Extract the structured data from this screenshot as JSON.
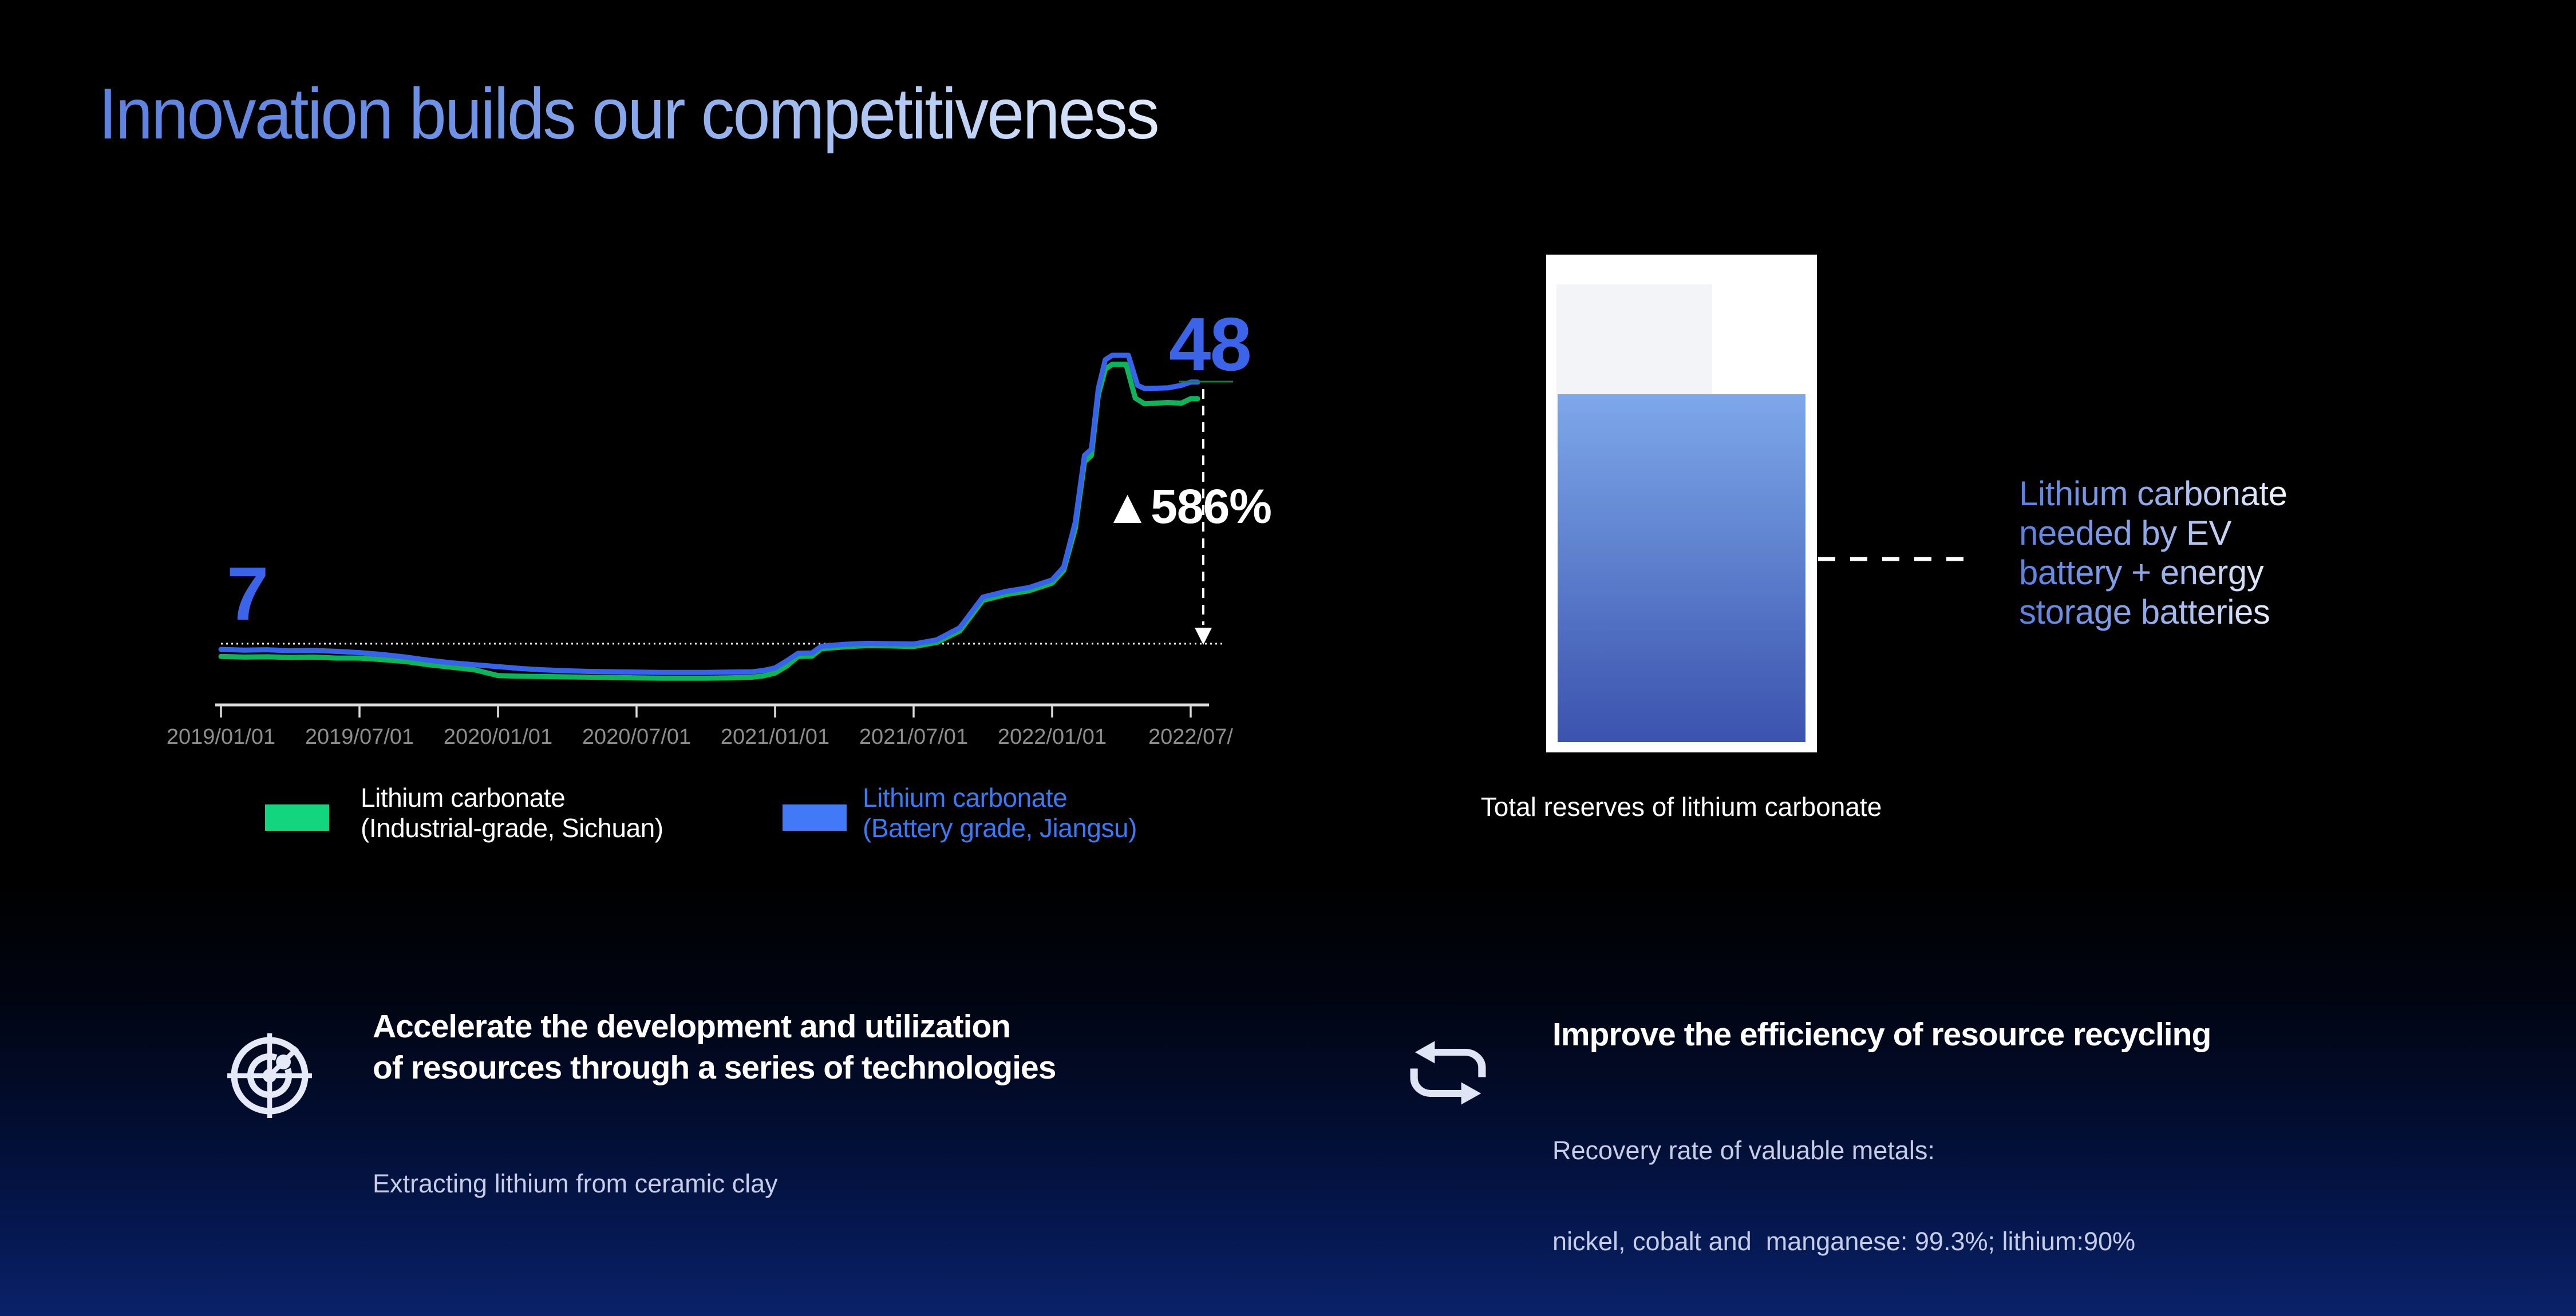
{
  "slide_title": "Innovation builds our competitiveness",
  "chart_data": {
    "type": "line",
    "x_axis": {
      "tick_labels": [
        "2019/01/01",
        "2019/07/01",
        "2020/01/01",
        "2020/07/01",
        "2021/01/01",
        "2021/07/01",
        "2022/01/01",
        "2022/07/"
      ],
      "tick_months": [
        0,
        6,
        12,
        18,
        24,
        30,
        36,
        42
      ]
    },
    "ylim": [
      0,
      55
    ],
    "grid": "off",
    "baseline_value": 7,
    "series": [
      {
        "name": "Lithium carbonate (Industrial-grade, Sichuan)",
        "color": "#11b35a",
        "points": [
          [
            0,
            5.0
          ],
          [
            1,
            4.9
          ],
          [
            2,
            4.95
          ],
          [
            3,
            4.85
          ],
          [
            4,
            4.9
          ],
          [
            5,
            4.75
          ],
          [
            6,
            4.75
          ],
          [
            7,
            4.5
          ],
          [
            8,
            4.2
          ],
          [
            9,
            3.7
          ],
          [
            10,
            3.3
          ],
          [
            11,
            2.9
          ],
          [
            12,
            2.0
          ],
          [
            13,
            1.9
          ],
          [
            14,
            1.85
          ],
          [
            15,
            1.8
          ],
          [
            16,
            1.75
          ],
          [
            17,
            1.7
          ],
          [
            18,
            1.65
          ],
          [
            19,
            1.6
          ],
          [
            20,
            1.6
          ],
          [
            21,
            1.6
          ],
          [
            22,
            1.65
          ],
          [
            23,
            1.75
          ],
          [
            23.5,
            1.95
          ],
          [
            24,
            2.4
          ],
          [
            24.5,
            3.5
          ],
          [
            25,
            5.0
          ],
          [
            25.6,
            5.05
          ],
          [
            26,
            6.2
          ],
          [
            27,
            6.5
          ],
          [
            28,
            6.7
          ],
          [
            29,
            6.65
          ],
          [
            30,
            6.55
          ],
          [
            31,
            7.2
          ],
          [
            32,
            9.0
          ],
          [
            33,
            13.8
          ],
          [
            34,
            14.7
          ],
          [
            35,
            15.3
          ],
          [
            36,
            16.5
          ],
          [
            36.5,
            18.5
          ],
          [
            37,
            25.0
          ],
          [
            37.4,
            35.5
          ],
          [
            37.7,
            36.5
          ],
          [
            38,
            46.0
          ],
          [
            38.3,
            50.0
          ],
          [
            38.6,
            50.8
          ],
          [
            39.2,
            50.8
          ],
          [
            39.6,
            45.5
          ],
          [
            40,
            44.6
          ],
          [
            41,
            44.8
          ],
          [
            41.6,
            44.7
          ],
          [
            42,
            45.4
          ],
          [
            42.3,
            45.4
          ]
        ]
      },
      {
        "name": "Lithium carbonate (Battery grade, Jiangsu)",
        "color": "#3663ea",
        "points": [
          [
            0,
            6.1
          ],
          [
            1,
            6.0
          ],
          [
            2,
            6.05
          ],
          [
            3,
            5.9
          ],
          [
            4,
            5.95
          ],
          [
            5,
            5.8
          ],
          [
            6,
            5.6
          ],
          [
            7,
            5.3
          ],
          [
            8,
            4.9
          ],
          [
            9,
            4.4
          ],
          [
            10,
            4.0
          ],
          [
            11,
            3.7
          ],
          [
            12,
            3.4
          ],
          [
            13,
            3.1
          ],
          [
            14,
            2.9
          ],
          [
            15,
            2.75
          ],
          [
            16,
            2.65
          ],
          [
            17,
            2.6
          ],
          [
            18,
            2.55
          ],
          [
            19,
            2.5
          ],
          [
            20,
            2.5
          ],
          [
            21,
            2.5
          ],
          [
            22,
            2.55
          ],
          [
            23,
            2.6
          ],
          [
            23.5,
            2.8
          ],
          [
            24,
            3.2
          ],
          [
            24.5,
            4.3
          ],
          [
            25,
            5.5
          ],
          [
            25.6,
            5.55
          ],
          [
            26,
            6.6
          ],
          [
            27,
            6.9
          ],
          [
            28,
            7.05
          ],
          [
            29,
            7.0
          ],
          [
            30,
            6.95
          ],
          [
            31,
            7.6
          ],
          [
            32,
            9.5
          ],
          [
            33,
            14.3
          ],
          [
            34,
            15.2
          ],
          [
            35,
            15.8
          ],
          [
            36,
            17.0
          ],
          [
            36.5,
            19.0
          ],
          [
            37,
            26.0
          ],
          [
            37.4,
            36.5
          ],
          [
            37.7,
            37.5
          ],
          [
            38,
            47.0
          ],
          [
            38.3,
            51.5
          ],
          [
            38.6,
            52.2
          ],
          [
            39.3,
            52.2
          ],
          [
            39.7,
            47.5
          ],
          [
            40,
            47.0
          ],
          [
            41,
            47.1
          ],
          [
            41.6,
            47.5
          ],
          [
            42,
            48.0
          ],
          [
            42.3,
            48.0
          ]
        ]
      }
    ],
    "annotations": {
      "start_label": "7",
      "end_label": "48",
      "change_label": "▲586%"
    }
  },
  "legend": {
    "items": [
      {
        "line1": "Lithium carbonate",
        "line2": "(Industrial-grade, Sichuan)",
        "swatch_color": "#12d57d",
        "text_color": "#ffffff"
      },
      {
        "line1": "Lithium carbonate",
        "line2": "(Battery grade, Jiangsu)",
        "swatch_color": "#4179f7",
        "text_color": "#3d78f5"
      }
    ]
  },
  "tank": {
    "caption": "Total reserves of lithium carbonate",
    "note_lines": [
      "Lithium carbonate",
      "needed by EV",
      "battery + energy",
      "storage batteries"
    ],
    "fill_top_color": "#7da8ea",
    "fill_bottom_color": "#3b53ae"
  },
  "features": [
    {
      "icon": "radar-target-icon",
      "title_line1": "Accelerate the development and utilization",
      "title_line2": "of resources through a series of technologies",
      "subtitle_line1": "Extracting lithium from ceramic clay",
      "subtitle_line2": ""
    },
    {
      "icon": "recycle-arrows-icon",
      "title_line1": "Improve the efficiency of resource recycling",
      "title_line2": "",
      "subtitle_line1": "Recovery rate of valuable metals:",
      "subtitle_line2": "nickel, cobalt and  manganese: 99.3%; lithium:90%"
    }
  ]
}
